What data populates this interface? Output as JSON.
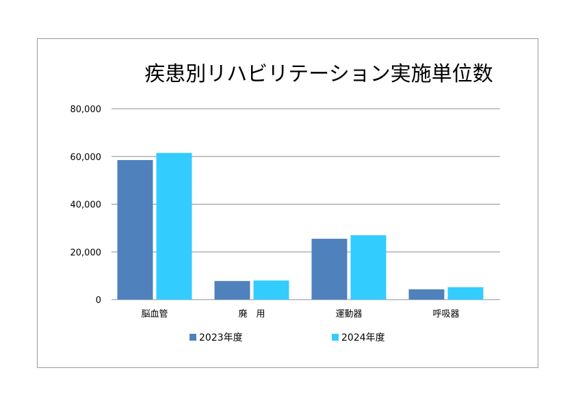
{
  "chart_data": {
    "type": "bar",
    "title": "疾患別リハビリテーション実施単位数",
    "categories": [
      "脳血管",
      "廃　用",
      "運動器",
      "呼吸器"
    ],
    "series": [
      {
        "name": "2023年度",
        "values": [
          58500,
          7800,
          25500,
          4300
        ],
        "color": "#4f81bd"
      },
      {
        "name": "2024年度",
        "values": [
          61500,
          8000,
          27000,
          5200
        ],
        "color": "#33ccff"
      }
    ],
    "ylim": [
      0,
      80000
    ],
    "yticks": [
      "0",
      "20,000",
      "40,000",
      "60,000",
      "80,000"
    ],
    "grid": true,
    "legend_position": "bottom"
  }
}
